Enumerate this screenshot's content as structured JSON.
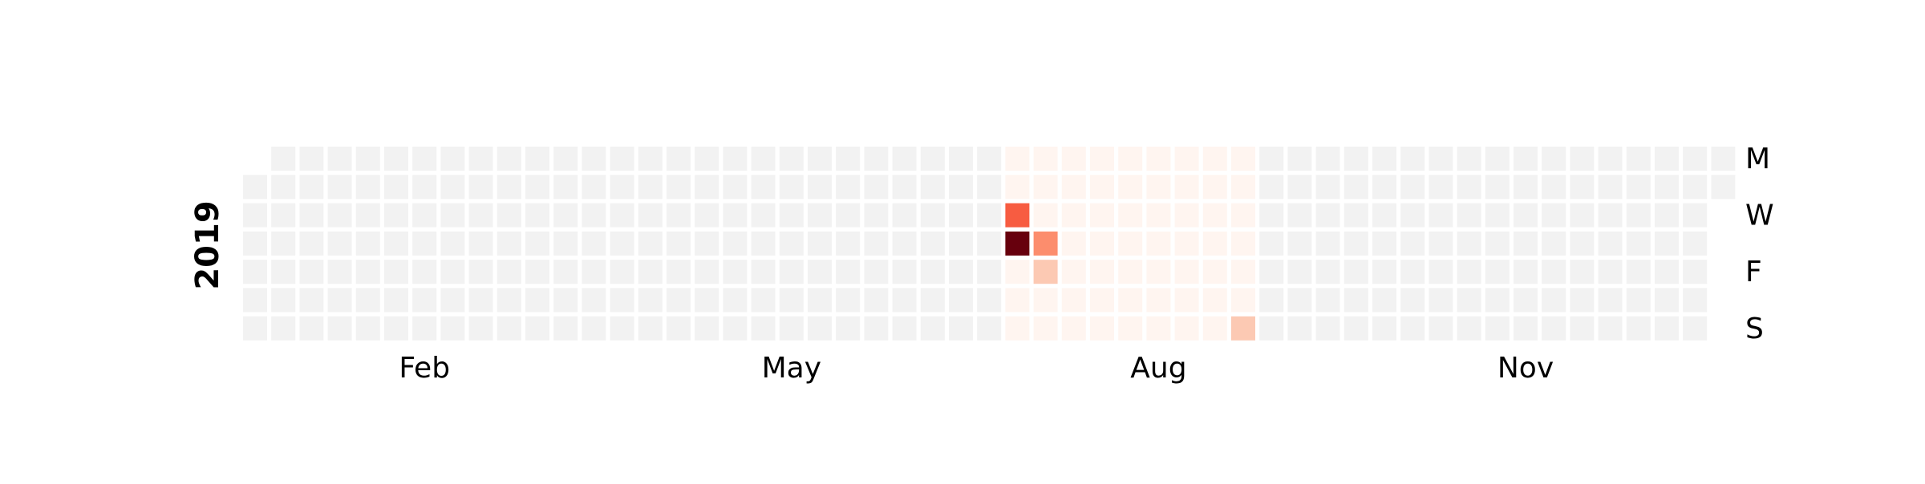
{
  "chart_data": {
    "type": "heatmap",
    "subtype": "calendar",
    "year": "2019",
    "year_label": "2019",
    "start_date": "2019-01-01",
    "end_date": "2019-12-31",
    "weekday_labels": [
      "M",
      "",
      "W",
      "",
      "F",
      "",
      "S"
    ],
    "month_labels": [
      "Feb",
      "May",
      "Aug",
      "Nov"
    ],
    "color_scale": {
      "empty": "#f2f2f2",
      "low": "#fff5f0",
      "light": "#fcc9b3",
      "mid": "#fc8d6d",
      "high": "#f75c41",
      "max": "#67000d"
    },
    "colored_range": [
      "2019-07-08",
      "2019-09-08"
    ],
    "values": [
      {
        "date": "2019-07-10",
        "value": 0.8
      },
      {
        "date": "2019-07-11",
        "value": 1.0
      },
      {
        "date": "2019-07-18",
        "value": 0.6
      },
      {
        "date": "2019-07-19",
        "value": 0.3
      },
      {
        "date": "2019-09-08",
        "value": 0.3
      }
    ],
    "legend": "none",
    "grid": false
  }
}
